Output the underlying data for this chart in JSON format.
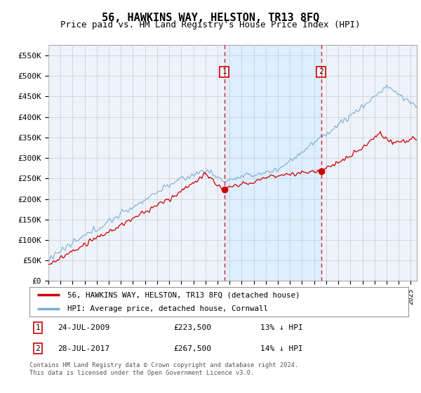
{
  "title": "56, HAWKINS WAY, HELSTON, TR13 8FQ",
  "subtitle": "Price paid vs. HM Land Registry's House Price Index (HPI)",
  "ylabel_ticks": [
    "£0",
    "£50K",
    "£100K",
    "£150K",
    "£200K",
    "£250K",
    "£300K",
    "£350K",
    "£400K",
    "£450K",
    "£500K",
    "£550K"
  ],
  "ytick_values": [
    0,
    50000,
    100000,
    150000,
    200000,
    250000,
    300000,
    350000,
    400000,
    450000,
    500000,
    550000
  ],
  "ylim": [
    0,
    575000
  ],
  "xlim_start": 1995.0,
  "xlim_end": 2025.5,
  "hpi_color": "#7bafd4",
  "price_color": "#cc0000",
  "marker1_x": 2009.56,
  "marker1_y": 223500,
  "marker2_x": 2017.57,
  "marker2_y": 267500,
  "dashed_line_color": "#cc0000",
  "shade_color": "#ddeeff",
  "legend_line1": "56, HAWKINS WAY, HELSTON, TR13 8FQ (detached house)",
  "legend_line2": "HPI: Average price, detached house, Cornwall",
  "background_color": "#ffffff",
  "plot_bg_color": "#eef2fa",
  "grid_color": "#cccccc",
  "title_fontsize": 11,
  "subtitle_fontsize": 9
}
